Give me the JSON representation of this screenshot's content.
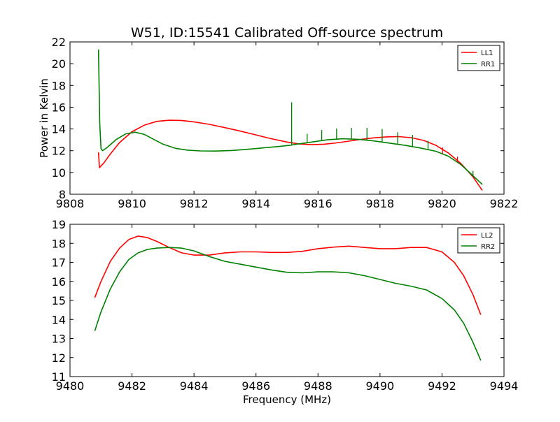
{
  "figure": {
    "title": "W51, ID:15541 Calibrated Off-source spectrum"
  },
  "chart_data": [
    {
      "type": "line",
      "title": "W51, ID:15541 Calibrated Off-source spectrum",
      "xlabel": "",
      "ylabel": "Power in Kelvin",
      "xlim": [
        9808,
        9822
      ],
      "ylim": [
        8,
        22
      ],
      "xticks": [
        9808,
        9810,
        9812,
        9814,
        9816,
        9818,
        9820,
        9822
      ],
      "yticks": [
        8,
        10,
        12,
        14,
        16,
        18,
        20,
        22
      ],
      "xtick_labels": [
        "9808",
        "9810",
        "9812",
        "9814",
        "9816",
        "9818",
        "9820",
        "9822"
      ],
      "ytick_labels": [
        "8",
        "10",
        "12",
        "14",
        "16",
        "18",
        "20",
        "22"
      ],
      "grid": false,
      "legend": "top-right",
      "series": [
        {
          "name": "LL1",
          "color": "#ff0000",
          "x": [
            9808.92,
            9808.95,
            9809.1,
            9809.3,
            9809.6,
            9810.0,
            9810.4,
            9810.8,
            9811.2,
            9811.6,
            9812.0,
            9812.5,
            9813.0,
            9813.5,
            9814.0,
            9814.5,
            9815.0,
            9815.4,
            9815.8,
            9816.2,
            9816.6,
            9817.0,
            9817.4,
            9817.8,
            9818.2,
            9818.6,
            9819.0,
            9819.4,
            9819.8,
            9820.2,
            9820.6,
            9821.0,
            9821.3
          ],
          "y": [
            11.85,
            10.45,
            10.9,
            11.7,
            12.75,
            13.75,
            14.35,
            14.7,
            14.8,
            14.78,
            14.65,
            14.42,
            14.12,
            13.8,
            13.45,
            13.1,
            12.8,
            12.62,
            12.55,
            12.6,
            12.72,
            12.88,
            13.05,
            13.18,
            13.27,
            13.3,
            13.2,
            12.95,
            12.5,
            11.8,
            10.85,
            9.6,
            8.35
          ]
        },
        {
          "name": "RR1",
          "color": "#008000",
          "x": [
            9808.92,
            9808.96,
            9809.0,
            9809.05,
            9809.2,
            9809.5,
            9809.8,
            9810.1,
            9810.4,
            9810.7,
            9811.0,
            9811.4,
            9811.8,
            9812.2,
            9812.7,
            9813.2,
            9813.7,
            9814.2,
            9814.7,
            9815.1,
            9815.3,
            9815.8,
            9816.3,
            9816.8,
            9817.3,
            9817.8,
            9818.3,
            9818.8,
            9819.3,
            9819.8,
            9820.2,
            9820.6,
            9821.0,
            9821.3
          ],
          "y": [
            21.3,
            14.5,
            12.2,
            12.0,
            12.3,
            13.05,
            13.55,
            13.7,
            13.5,
            13.05,
            12.6,
            12.22,
            12.05,
            11.98,
            11.97,
            12.02,
            12.12,
            12.25,
            12.38,
            12.5,
            12.6,
            12.8,
            13.0,
            13.1,
            13.05,
            12.9,
            12.7,
            12.5,
            12.25,
            11.95,
            11.5,
            10.75,
            9.7,
            8.9
          ]
        }
      ],
      "spikes": [
        {
          "series": "RR1",
          "x": 9815.15,
          "y_top": 16.45,
          "y_base": 12.55
        },
        {
          "series": "RR1",
          "x": 9815.65,
          "y_top": 13.55,
          "y_base": 12.72
        },
        {
          "series": "RR1",
          "x": 9816.12,
          "y_top": 13.9,
          "y_base": 12.95
        },
        {
          "series": "RR1",
          "x": 9816.6,
          "y_top": 14.05,
          "y_base": 13.08
        },
        {
          "series": "RR1",
          "x": 9817.08,
          "y_top": 14.1,
          "y_base": 13.08
        },
        {
          "series": "RR1",
          "x": 9817.58,
          "y_top": 14.1,
          "y_base": 12.97
        },
        {
          "series": "RR1",
          "x": 9818.07,
          "y_top": 14.0,
          "y_base": 12.75
        },
        {
          "series": "RR1",
          "x": 9818.57,
          "y_top": 13.7,
          "y_base": 12.55
        },
        {
          "series": "RR1",
          "x": 9819.05,
          "y_top": 13.45,
          "y_base": 12.32
        },
        {
          "series": "RR1",
          "x": 9819.55,
          "y_top": 12.9,
          "y_base": 12.05
        },
        {
          "series": "LL1",
          "x": 9820.02,
          "y_top": 12.3,
          "y_base": 11.72
        },
        {
          "series": "LL1",
          "x": 9820.5,
          "y_top": 11.45,
          "y_base": 10.95
        },
        {
          "series": "RR1",
          "x": 9821.0,
          "y_top": 10.15,
          "y_base": 9.7
        }
      ]
    },
    {
      "type": "line",
      "title": "",
      "xlabel": "Frequency (MHz)",
      "ylabel": "",
      "xlim": [
        9480,
        9494
      ],
      "ylim": [
        11,
        19
      ],
      "xticks": [
        9480,
        9482,
        9484,
        9486,
        9488,
        9490,
        9492,
        9494
      ],
      "yticks": [
        11,
        12,
        13,
        14,
        15,
        16,
        17,
        18,
        19
      ],
      "xtick_labels": [
        "9480",
        "9482",
        "9484",
        "9486",
        "9488",
        "9490",
        "9492",
        "9494"
      ],
      "ytick_labels": [
        "11",
        "12",
        "13",
        "14",
        "15",
        "16",
        "17",
        "18",
        "19"
      ],
      "grid": false,
      "legend": "top-right",
      "series": [
        {
          "name": "LL2",
          "color": "#ff0000",
          "x": [
            9480.8,
            9481.0,
            9481.3,
            9481.6,
            9481.9,
            9482.2,
            9482.5,
            9482.8,
            9483.2,
            9483.6,
            9484.0,
            9484.5,
            9485.0,
            9485.5,
            9486.0,
            9486.5,
            9487.0,
            9487.5,
            9488.0,
            9488.5,
            9489.0,
            9489.5,
            9490.0,
            9490.5,
            9491.0,
            9491.5,
            9492.0,
            9492.4,
            9492.7,
            9493.0,
            9493.25
          ],
          "y": [
            15.15,
            16.0,
            17.05,
            17.75,
            18.2,
            18.38,
            18.3,
            18.1,
            17.78,
            17.5,
            17.38,
            17.38,
            17.5,
            17.55,
            17.55,
            17.52,
            17.52,
            17.58,
            17.72,
            17.8,
            17.85,
            17.78,
            17.72,
            17.72,
            17.78,
            17.78,
            17.55,
            17.0,
            16.3,
            15.3,
            14.25
          ]
        },
        {
          "name": "RR2",
          "color": "#008000",
          "x": [
            9480.8,
            9481.0,
            9481.3,
            9481.6,
            9481.9,
            9482.2,
            9482.5,
            9482.8,
            9483.2,
            9483.6,
            9484.0,
            9484.5,
            9485.0,
            9485.5,
            9486.0,
            9486.5,
            9487.0,
            9487.5,
            9488.0,
            9488.5,
            9489.0,
            9489.5,
            9490.0,
            9490.5,
            9491.0,
            9491.5,
            9492.0,
            9492.4,
            9492.7,
            9493.0,
            9493.25
          ],
          "y": [
            13.4,
            14.4,
            15.6,
            16.5,
            17.15,
            17.5,
            17.68,
            17.75,
            17.78,
            17.75,
            17.6,
            17.3,
            17.05,
            16.9,
            16.75,
            16.6,
            16.48,
            16.45,
            16.5,
            16.5,
            16.45,
            16.3,
            16.1,
            15.9,
            15.75,
            15.55,
            15.1,
            14.5,
            13.8,
            12.8,
            11.85
          ]
        }
      ]
    }
  ]
}
